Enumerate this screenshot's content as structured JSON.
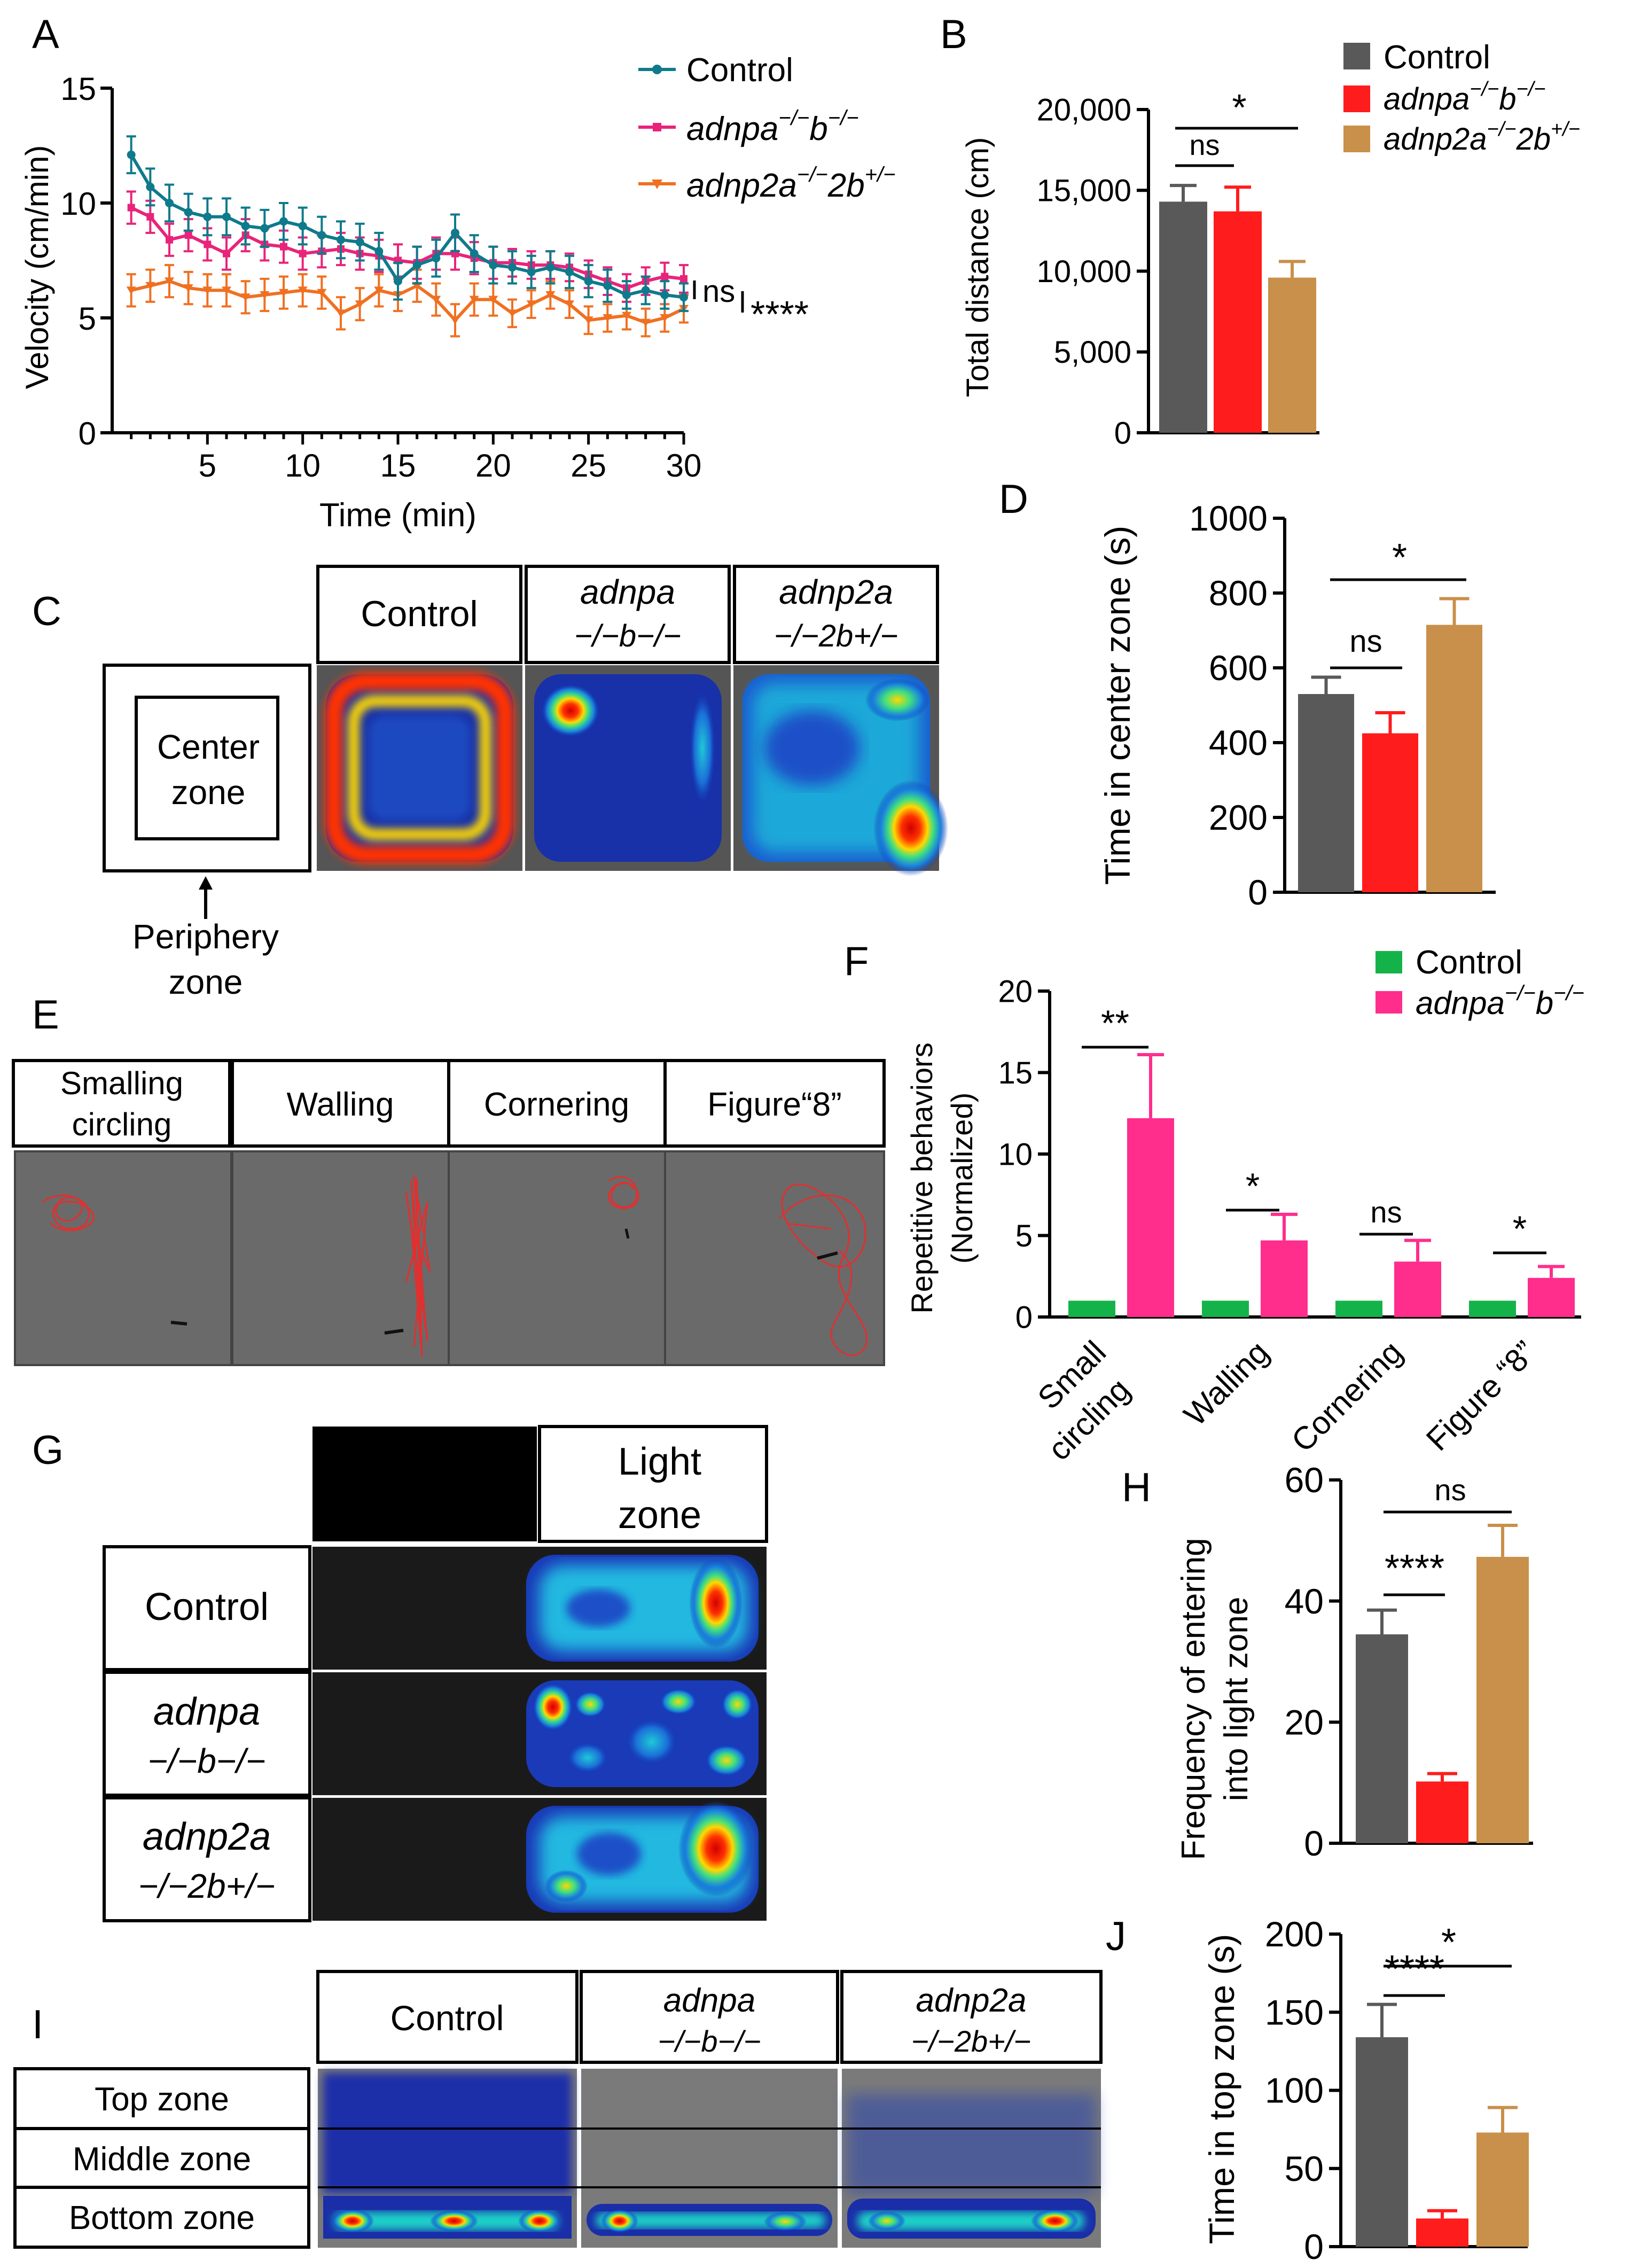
{
  "colors": {
    "control": "#0f7a8c",
    "adnpa": "#e8247a",
    "adnp2a": "#f07021",
    "bar_control": "#595959",
    "bar_adnpa": "#ff1c1c",
    "bar_adnp2a": "#c8904a",
    "bar_f_control": "#14b34a",
    "bar_f_adnpa": "#ff2d8c"
  },
  "panels": {
    "A": "A",
    "B": "B",
    "C": "C",
    "D": "D",
    "E": "E",
    "F": "F",
    "G": "G",
    "H": "H",
    "I": "I",
    "J": "J"
  },
  "legend": {
    "control": "Control",
    "adnpa_main": "adnpa",
    "adnpa_sup1": "−/−",
    "adnpa_mid": "b",
    "adnpa_sup2": "−/−",
    "adnp2a_main": "adnp2a",
    "adnp2a_sup1": "−/−",
    "adnp2a_mid": "2b",
    "adnp2a_sup2": "+/−"
  },
  "panel_c": {
    "center_zone_1": "Center",
    "center_zone_2": "zone",
    "periphery_1": "Periphery",
    "periphery_2": "zone",
    "col_control": "Control",
    "col_adnpa": "adnpa",
    "col_adnpa_sub": "−/−b−/−",
    "col_adnp2a": "adnp2a",
    "col_adnp2a_sub": "−/−2b+/−"
  },
  "panel_e": {
    "labels": [
      "Smalling circling",
      "Walling",
      "Cornering",
      "Figure“8”"
    ],
    "label1_line1": "Smalling",
    "label1_line2": "circling"
  },
  "panel_g": {
    "light_1": "Light",
    "light_2": "zone",
    "row_control": "Control",
    "row_adnpa": "adnpa",
    "row_adnpa_sub": "−/−b−/−",
    "row_adnp2a": "adnp2a",
    "row_adnp2a_sub": "−/−2b+/−"
  },
  "panel_i": {
    "col_control": "Control",
    "col_adnpa": "adnpa",
    "col_adnpa_sub": "−/−b−/−",
    "col_adnp2a": "adnp2a",
    "col_adnp2a_sub": "−/−2b+/−",
    "top": "Top zone",
    "middle": "Middle zone",
    "bottom": "Bottom zone"
  },
  "chart_data": [
    {
      "id": "A",
      "type": "line",
      "xlabel": "Time (min)",
      "ylabel": "Velocity (cm/min)",
      "xlim": [
        0,
        30
      ],
      "ylim": [
        0,
        15
      ],
      "xticks": [
        5,
        10,
        15,
        20,
        25,
        30
      ],
      "yticks": [
        0,
        5,
        10,
        15
      ],
      "x": [
        1,
        2,
        3,
        4,
        5,
        6,
        7,
        8,
        9,
        10,
        11,
        12,
        13,
        14,
        15,
        16,
        17,
        18,
        19,
        20,
        21,
        22,
        23,
        24,
        25,
        26,
        27,
        28,
        29,
        30
      ],
      "series": [
        {
          "name": "Control",
          "values": [
            12.1,
            10.7,
            10.0,
            9.6,
            9.4,
            9.4,
            9.0,
            8.9,
            9.2,
            9.0,
            8.6,
            8.4,
            8.3,
            7.9,
            6.6,
            7.3,
            7.6,
            8.7,
            7.8,
            7.3,
            7.2,
            7.0,
            7.2,
            7.0,
            6.6,
            6.4,
            6.0,
            6.2,
            6.0,
            5.9
          ],
          "err": [
            0.8,
            0.8,
            0.8,
            0.8,
            0.8,
            0.8,
            0.8,
            0.8,
            0.8,
            0.8,
            0.8,
            0.8,
            0.8,
            0.8,
            0.8,
            0.8,
            0.8,
            0.8,
            0.8,
            0.8,
            0.7,
            0.7,
            0.7,
            0.7,
            0.7,
            0.7,
            0.6,
            0.6,
            0.6,
            0.6
          ]
        },
        {
          "name": "adnpa−/−b−/−",
          "values": [
            9.8,
            9.4,
            8.4,
            8.6,
            8.2,
            7.8,
            8.6,
            8.2,
            8.1,
            7.8,
            7.9,
            8.0,
            7.8,
            7.7,
            7.5,
            7.4,
            7.8,
            7.8,
            7.6,
            7.4,
            7.4,
            7.3,
            7.3,
            7.2,
            6.9,
            6.6,
            6.3,
            6.6,
            6.8,
            6.7
          ],
          "err": [
            0.7,
            0.7,
            0.7,
            0.7,
            0.7,
            0.7,
            0.7,
            0.7,
            0.7,
            0.7,
            0.7,
            0.7,
            0.7,
            0.7,
            0.7,
            0.7,
            0.7,
            0.7,
            0.7,
            0.7,
            0.6,
            0.6,
            0.6,
            0.6,
            0.6,
            0.6,
            0.6,
            0.6,
            0.6,
            0.6
          ]
        },
        {
          "name": "adnp2a−/−2b+/−",
          "values": [
            6.2,
            6.4,
            6.6,
            6.3,
            6.2,
            6.2,
            5.9,
            6.0,
            6.1,
            6.2,
            6.1,
            5.2,
            5.6,
            6.2,
            6.0,
            6.4,
            5.8,
            4.9,
            5.8,
            5.8,
            5.2,
            5.6,
            6.0,
            5.6,
            4.9,
            5.0,
            5.1,
            4.8,
            5.0,
            5.4
          ],
          "err": [
            0.7,
            0.7,
            0.7,
            0.7,
            0.7,
            0.7,
            0.7,
            0.7,
            0.7,
            0.7,
            0.7,
            0.7,
            0.7,
            0.7,
            0.7,
            0.7,
            0.7,
            0.7,
            0.7,
            0.7,
            0.6,
            0.6,
            0.6,
            0.6,
            0.6,
            0.6,
            0.6,
            0.6,
            0.6,
            0.6
          ]
        }
      ],
      "annotations": [
        "ns",
        "****"
      ]
    },
    {
      "id": "B",
      "type": "bar",
      "ylabel": "Total distance (cm)",
      "ylim": [
        0,
        20000
      ],
      "yticks": [
        0,
        5000,
        10000,
        15000,
        20000
      ],
      "ytick_labels": [
        "0",
        "5,000",
        "10,000",
        "15,000",
        "20,000"
      ],
      "categories": [
        "Control",
        "adnpa−/−b−/−",
        "adnp2a−/−2b+/−"
      ],
      "values": [
        14300,
        13700,
        9600
      ],
      "err": [
        1000,
        1500,
        1000
      ],
      "annotations": [
        "ns",
        "*"
      ]
    },
    {
      "id": "D",
      "type": "bar",
      "ylabel": "Time in center zone (s)",
      "ylim": [
        0,
        1000
      ],
      "yticks": [
        0,
        200,
        400,
        600,
        800,
        1000
      ],
      "categories": [
        "Control",
        "adnpa−/−b−/−",
        "adnp2a−/−2b+/−"
      ],
      "values": [
        530,
        425,
        715
      ],
      "err": [
        45,
        55,
        70
      ],
      "annotations": [
        "ns",
        "*"
      ]
    },
    {
      "id": "F",
      "type": "bar",
      "ylabel_1": "Repetitive behaviors",
      "ylabel_2": "(Normalized)",
      "ylim": [
        0,
        20
      ],
      "yticks": [
        0,
        5,
        10,
        15,
        20
      ],
      "categories": [
        "Small circling",
        "Walling",
        "Cornering",
        "Figure “8”"
      ],
      "category_lines": [
        [
          "Small",
          "circling"
        ],
        [
          "Walling"
        ],
        [
          "Cornering"
        ],
        [
          "Figure “8”"
        ]
      ],
      "series": [
        {
          "name": "Control",
          "values": [
            1,
            1,
            1,
            1
          ],
          "err": [
            0,
            0,
            0,
            0
          ]
        },
        {
          "name": "adnpa−/−b−/−",
          "values": [
            12.2,
            4.7,
            3.4,
            2.4
          ],
          "err": [
            3.9,
            1.6,
            1.3,
            0.7
          ]
        }
      ],
      "annotations": [
        "**",
        "*",
        "ns",
        "*"
      ]
    },
    {
      "id": "H",
      "type": "bar",
      "ylabel_1": "Frequency of entering",
      "ylabel_2": "into light zone",
      "ylim": [
        0,
        60
      ],
      "yticks": [
        0,
        20,
        40,
        60
      ],
      "categories": [
        "Control",
        "adnpa−/−b−/−",
        "adnp2a−/−2b+/−"
      ],
      "values": [
        34.5,
        10.2,
        47.3
      ],
      "err": [
        4.0,
        1.3,
        5.2
      ],
      "annotations": [
        "****",
        "ns"
      ]
    },
    {
      "id": "J",
      "type": "bar",
      "ylabel": "Time in top zone (s)",
      "ylim": [
        0,
        200
      ],
      "yticks": [
        0,
        50,
        100,
        150,
        200
      ],
      "categories": [
        "Control",
        "adnpa−/−b−/−",
        "adnp2a−/−2b+/−"
      ],
      "values": [
        134,
        18,
        73
      ],
      "err": [
        21,
        5,
        16
      ],
      "annotations": [
        "****",
        "*"
      ]
    }
  ]
}
